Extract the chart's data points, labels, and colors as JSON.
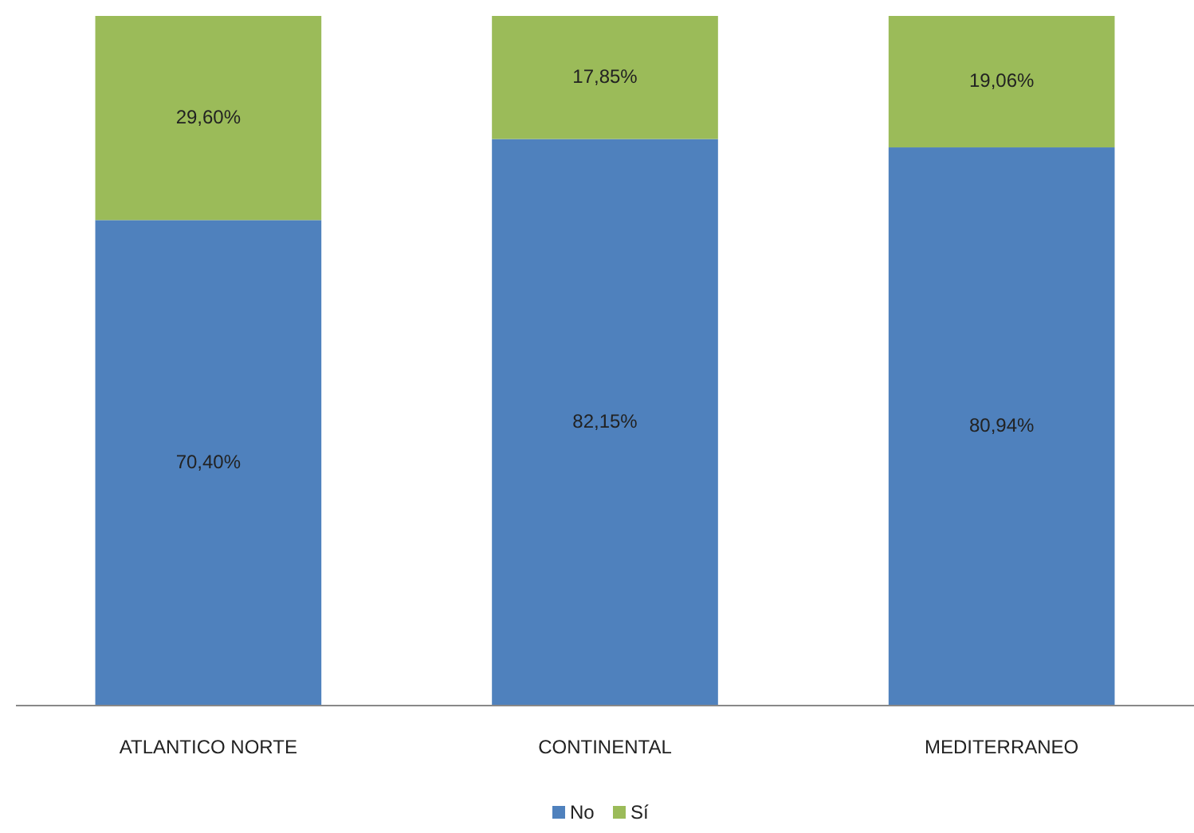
{
  "chart_data": {
    "type": "bar",
    "stacked": true,
    "categories": [
      "ATLANTICO NORTE",
      "CONTINENTAL",
      "MEDITERRANEO"
    ],
    "series": [
      {
        "name": "No",
        "color": "#4f81bd",
        "values": [
          70.4,
          82.15,
          80.94
        ],
        "value_labels": [
          "70,40%",
          "82,15%",
          "80,94%"
        ]
      },
      {
        "name": "Sí",
        "color": "#9bbb59",
        "values": [
          29.6,
          17.85,
          19.06
        ],
        "value_labels": [
          "29,60%",
          "17,85%",
          "19,06%"
        ]
      }
    ],
    "ylim": [
      0,
      100
    ],
    "tick_labels": "x",
    "legend": "bottom",
    "grid": false
  }
}
